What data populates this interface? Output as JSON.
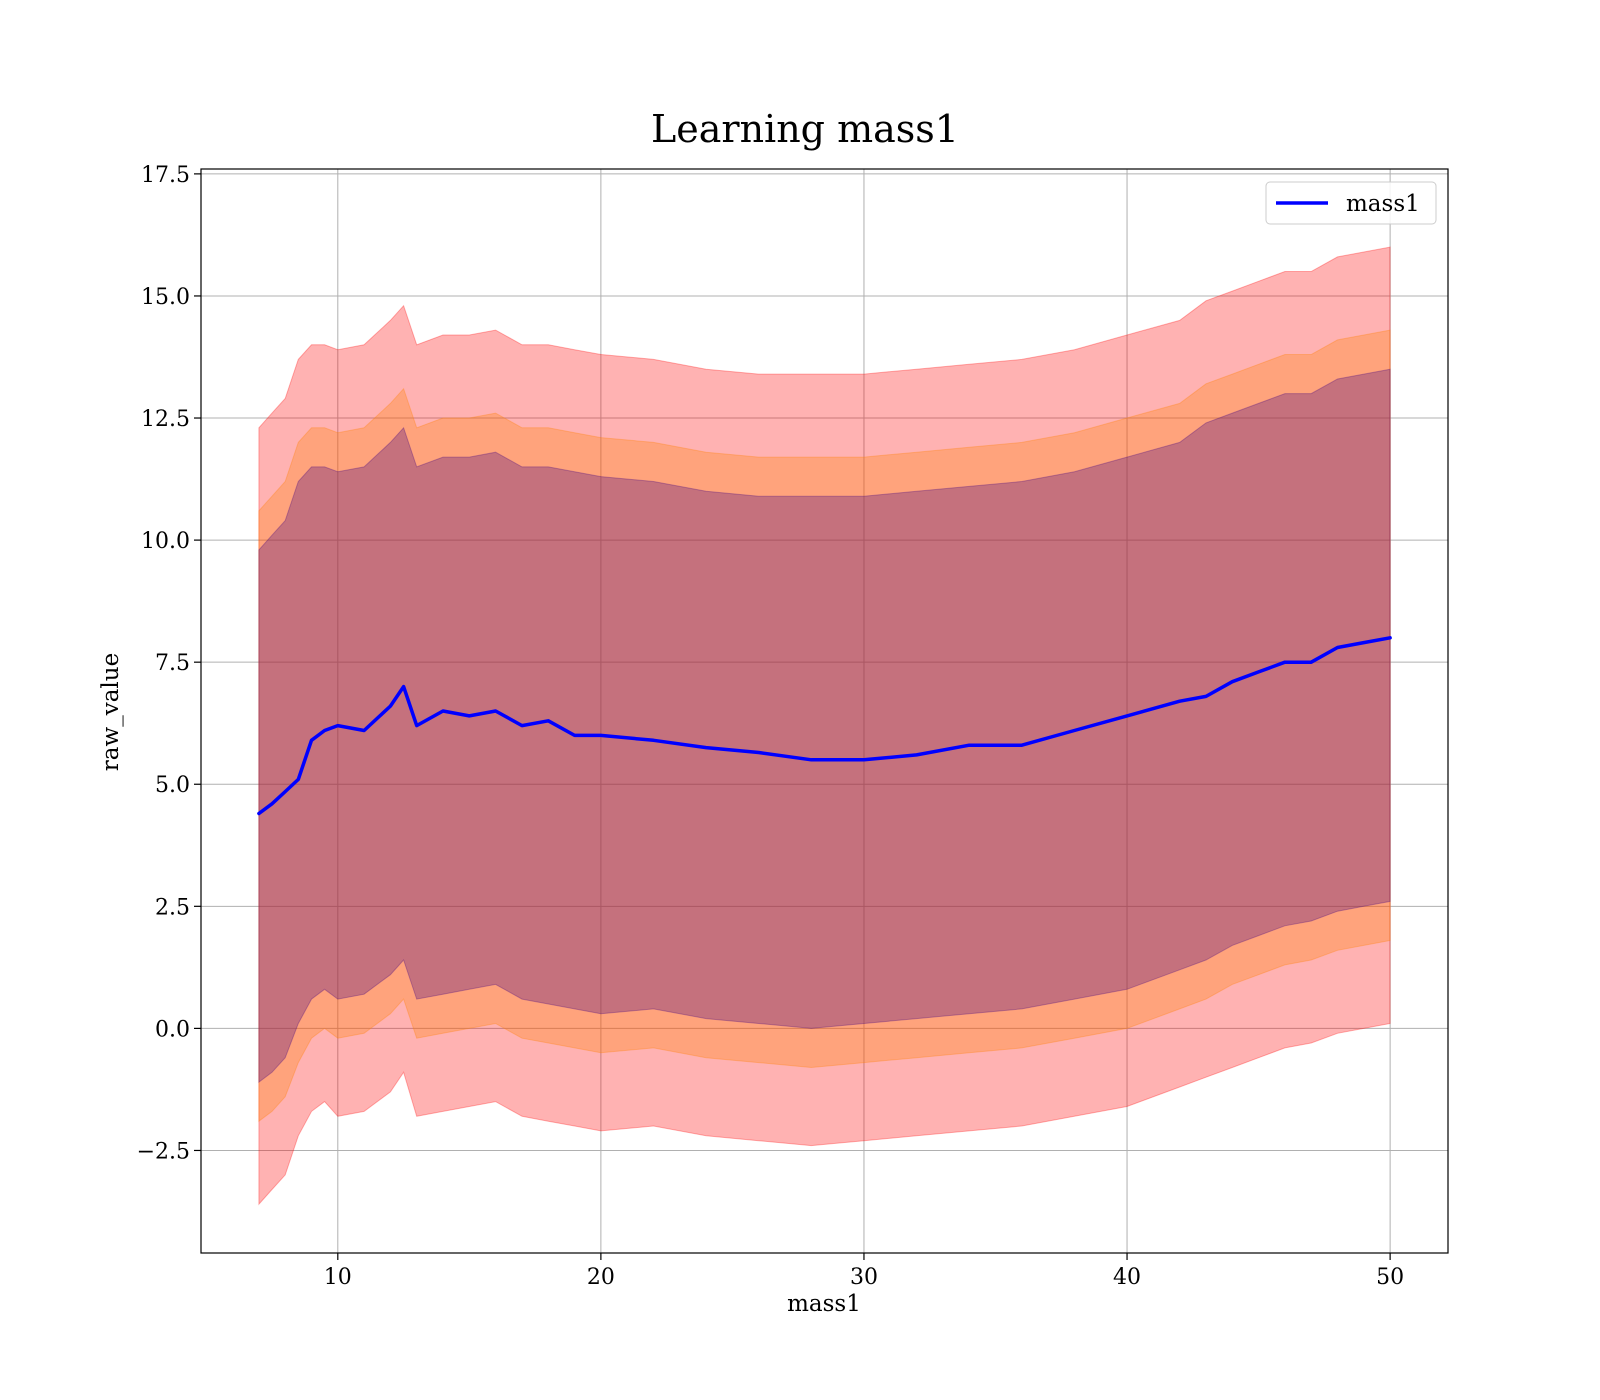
{
  "chart_data": {
    "type": "area",
    "title": "Learning mass1",
    "xlabel": "mass1",
    "ylabel": "raw_value",
    "xlim": [
      4.8,
      52.2
    ],
    "ylim": [
      -4.6,
      17.6
    ],
    "xticks": [
      10,
      20,
      30,
      40,
      50
    ],
    "xtick_labels": [
      "10",
      "20",
      "30",
      "40",
      "50"
    ],
    "yticks": [
      -2.5,
      0.0,
      2.5,
      5.0,
      7.5,
      10.0,
      12.5,
      15.0,
      17.5
    ],
    "ytick_labels": [
      "−2.5",
      "0.0",
      "2.5",
      "5.0",
      "7.5",
      "10.0",
      "12.5",
      "15.0",
      "17.5"
    ],
    "grid": true,
    "legend": {
      "placement": "top-right",
      "entries": [
        "mass1"
      ]
    },
    "x": [
      7,
      7.5,
      8,
      8.5,
      9,
      9.5,
      10,
      11,
      12,
      12.5,
      13,
      14,
      15,
      16,
      17,
      18,
      19,
      20,
      22,
      24,
      26,
      28,
      30,
      32,
      34,
      36,
      38,
      40,
      42,
      43,
      44,
      45,
      46,
      47,
      48,
      49,
      50
    ],
    "series": [
      {
        "name": "mass1",
        "color": "#0000ff",
        "values": [
          4.4,
          4.6,
          4.85,
          5.1,
          5.9,
          6.1,
          6.2,
          6.1,
          6.6,
          7.0,
          6.2,
          6.5,
          6.4,
          6.5,
          6.2,
          6.3,
          6.0,
          6.0,
          5.9,
          5.75,
          5.65,
          5.5,
          5.5,
          5.6,
          5.8,
          5.8,
          6.1,
          6.4,
          6.7,
          6.8,
          7.1,
          7.3,
          7.5,
          7.5,
          7.8,
          7.9,
          8.0
        ]
      }
    ],
    "bands": [
      {
        "color": "#ff0000",
        "opacity": 0.3,
        "lower": [
          -3.6,
          -3.3,
          -3.0,
          -2.2,
          -1.7,
          -1.5,
          -1.8,
          -1.7,
          -1.3,
          -0.9,
          -1.8,
          -1.7,
          -1.6,
          -1.5,
          -1.8,
          -1.9,
          -2.0,
          -2.1,
          -2.0,
          -2.2,
          -2.3,
          -2.4,
          -2.3,
          -2.2,
          -2.1,
          -2.0,
          -1.8,
          -1.6,
          -1.2,
          -1.0,
          -0.8,
          -0.6,
          -0.4,
          -0.3,
          -0.1,
          0.0,
          0.1
        ],
        "upper": [
          12.3,
          12.6,
          12.9,
          13.7,
          14.0,
          14.0,
          13.9,
          14.0,
          14.5,
          14.8,
          14.0,
          14.2,
          14.2,
          14.3,
          14.0,
          14.0,
          13.9,
          13.8,
          13.7,
          13.5,
          13.4,
          13.4,
          13.4,
          13.5,
          13.6,
          13.7,
          13.9,
          14.2,
          14.5,
          14.9,
          15.1,
          15.3,
          15.5,
          15.5,
          15.8,
          15.9,
          16.0
        ]
      },
      {
        "color": "#ff8000",
        "opacity": 0.3,
        "lower": [
          -1.9,
          -1.7,
          -1.4,
          -0.7,
          -0.2,
          0.0,
          -0.2,
          -0.1,
          0.3,
          0.6,
          -0.2,
          -0.1,
          0.0,
          0.1,
          -0.2,
          -0.3,
          -0.4,
          -0.5,
          -0.4,
          -0.6,
          -0.7,
          -0.8,
          -0.7,
          -0.6,
          -0.5,
          -0.4,
          -0.2,
          0.0,
          0.4,
          0.6,
          0.9,
          1.1,
          1.3,
          1.4,
          1.6,
          1.7,
          1.8
        ],
        "upper": [
          10.6,
          10.9,
          11.2,
          12.0,
          12.3,
          12.3,
          12.2,
          12.3,
          12.8,
          13.1,
          12.3,
          12.5,
          12.5,
          12.6,
          12.3,
          12.3,
          12.2,
          12.1,
          12.0,
          11.8,
          11.7,
          11.7,
          11.7,
          11.8,
          11.9,
          12.0,
          12.2,
          12.5,
          12.8,
          13.2,
          13.4,
          13.6,
          13.8,
          13.8,
          14.1,
          14.2,
          14.3
        ]
      },
      {
        "color": "#400080",
        "opacity": 0.3,
        "lower": [
          -1.1,
          -0.9,
          -0.6,
          0.1,
          0.6,
          0.8,
          0.6,
          0.7,
          1.1,
          1.4,
          0.6,
          0.7,
          0.8,
          0.9,
          0.6,
          0.5,
          0.4,
          0.3,
          0.4,
          0.2,
          0.1,
          0.0,
          0.1,
          0.2,
          0.3,
          0.4,
          0.6,
          0.8,
          1.2,
          1.4,
          1.7,
          1.9,
          2.1,
          2.2,
          2.4,
          2.5,
          2.6
        ],
        "upper": [
          9.8,
          10.1,
          10.4,
          11.2,
          11.5,
          11.5,
          11.4,
          11.5,
          12.0,
          12.3,
          11.5,
          11.7,
          11.7,
          11.8,
          11.5,
          11.5,
          11.4,
          11.3,
          11.2,
          11.0,
          10.9,
          10.9,
          10.9,
          11.0,
          11.1,
          11.2,
          11.4,
          11.7,
          12.0,
          12.4,
          12.6,
          12.8,
          13.0,
          13.0,
          13.3,
          13.4,
          13.5
        ]
      }
    ]
  }
}
